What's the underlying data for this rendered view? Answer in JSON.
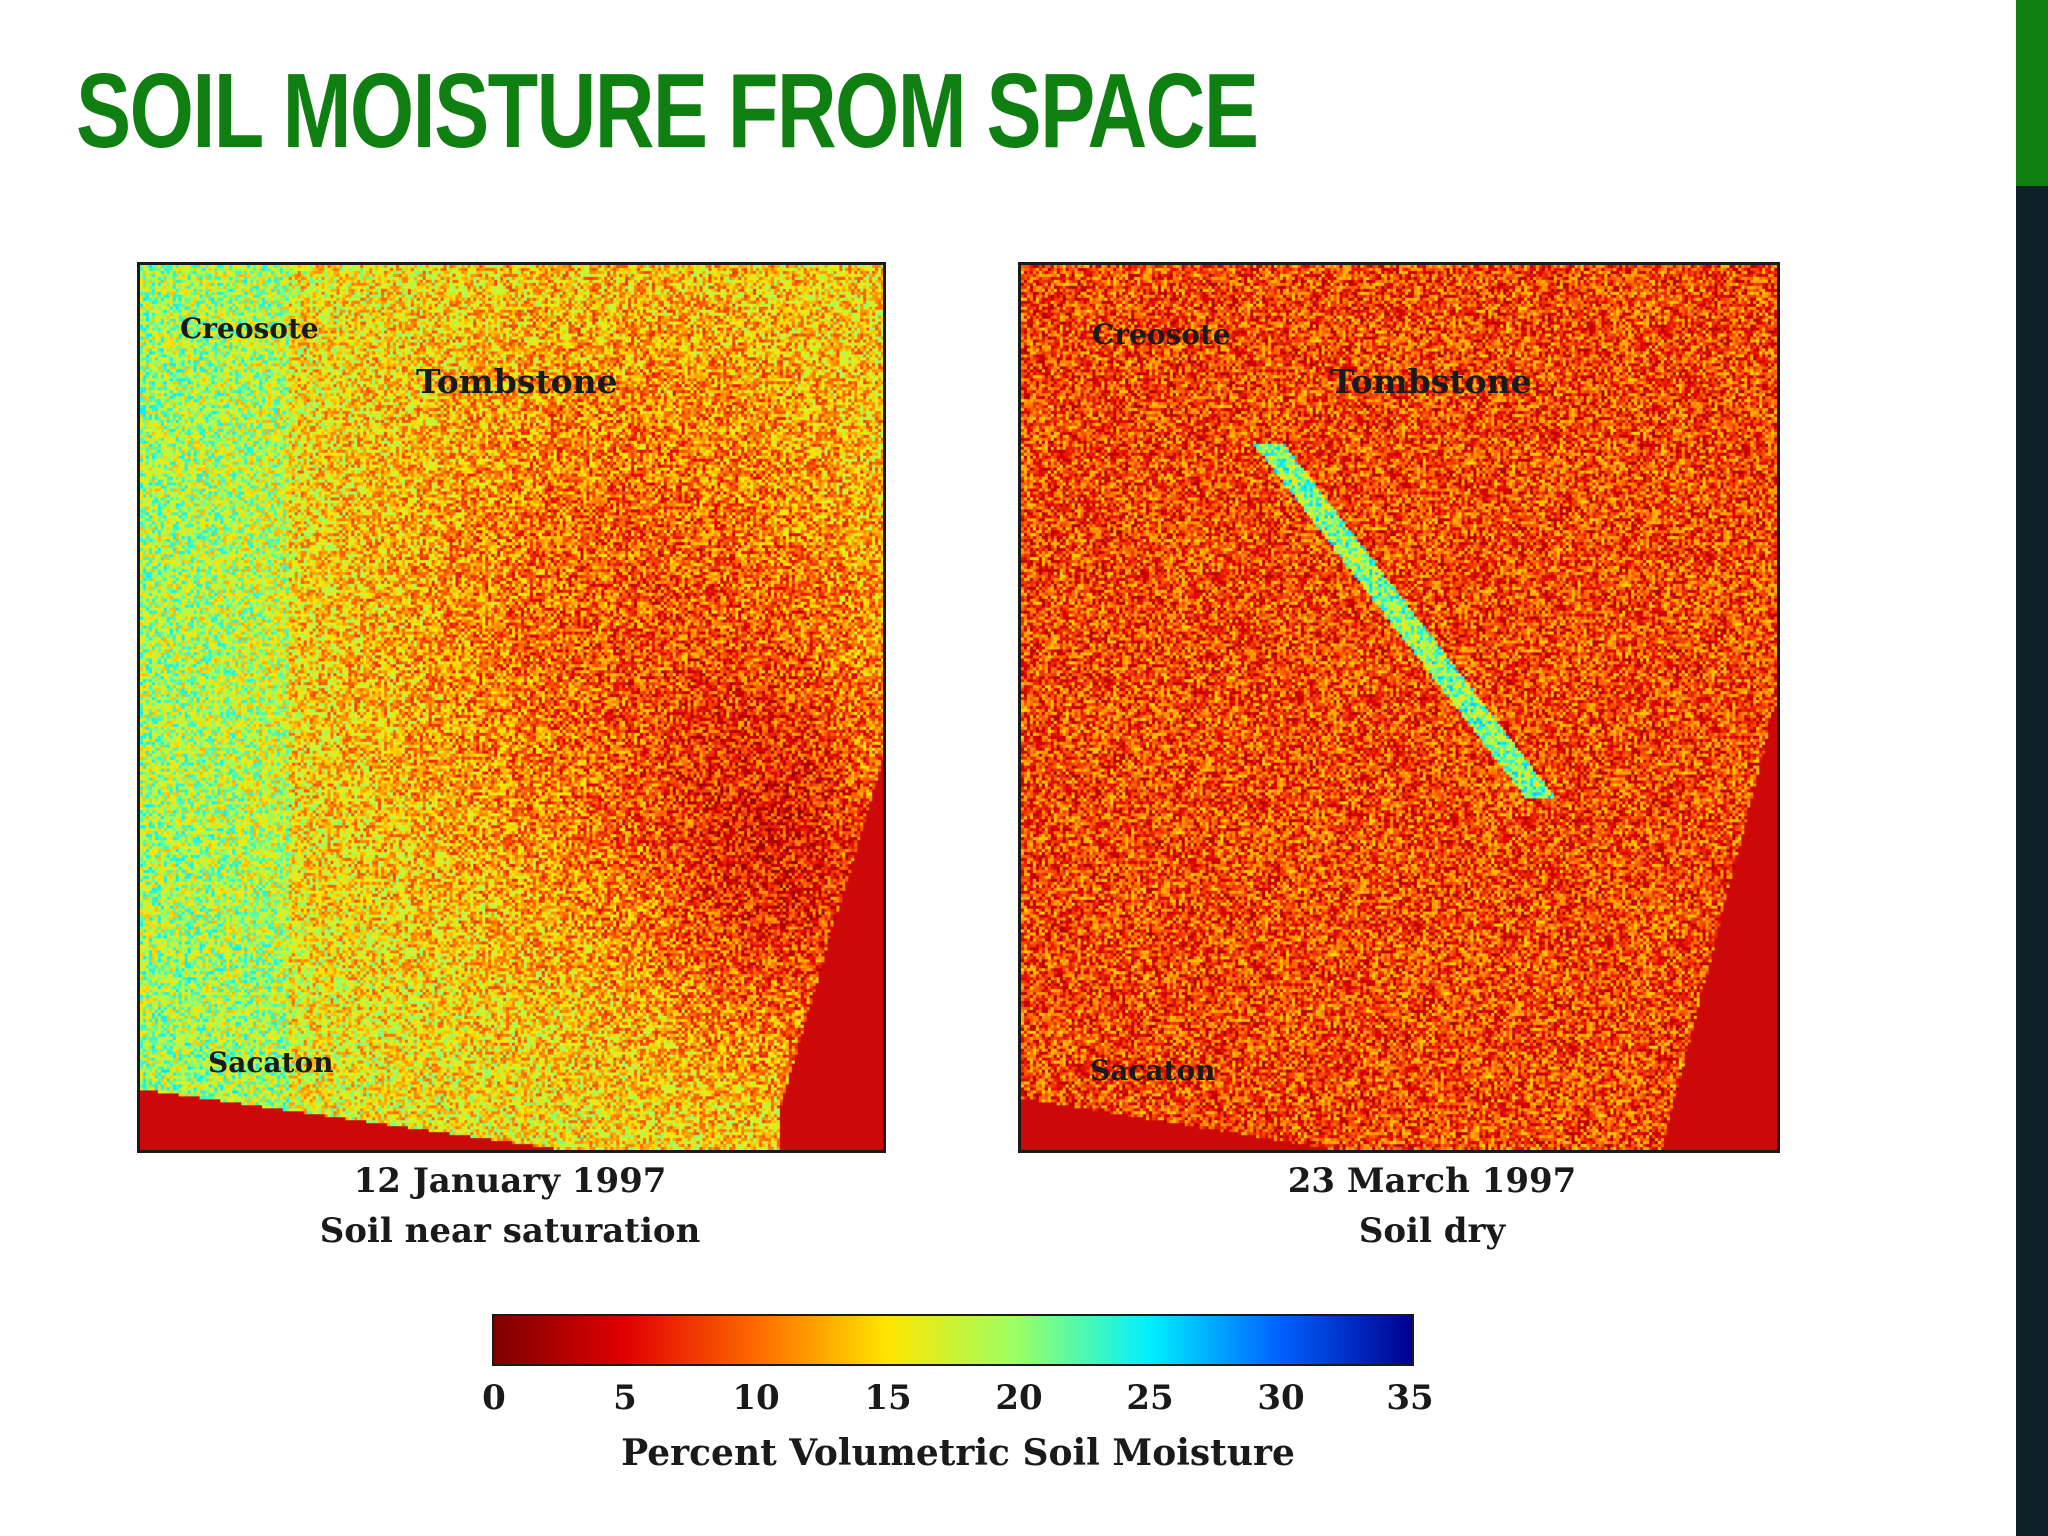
{
  "slide": {
    "title": "SOIL MOISTURE FROM SPACE",
    "accent_color": "#0f7f12",
    "bar_color": "#0f2128"
  },
  "maps": [
    {
      "locations": [
        "Creosote",
        "Tombstone",
        "Sacaton"
      ],
      "date": "12 January 1997",
      "condition": "Soil near saturation"
    },
    {
      "locations": [
        "Creosote",
        "Tombstone",
        "Sacaton"
      ],
      "date": "23 March 1997",
      "condition": "Soil dry"
    }
  ],
  "colorbar": {
    "ticks": [
      "0",
      "5",
      "10",
      "15",
      "20",
      "25",
      "30",
      "35"
    ],
    "min": 0,
    "max": 35,
    "label": "Percent Volumetric Soil Moisture",
    "colormap": "jet-reversed",
    "stops": [
      "#7f0000",
      "#e00000",
      "#ff6a00",
      "#ffe600",
      "#9aff66",
      "#00f0ff",
      "#0060ff",
      "#00008f"
    ]
  }
}
